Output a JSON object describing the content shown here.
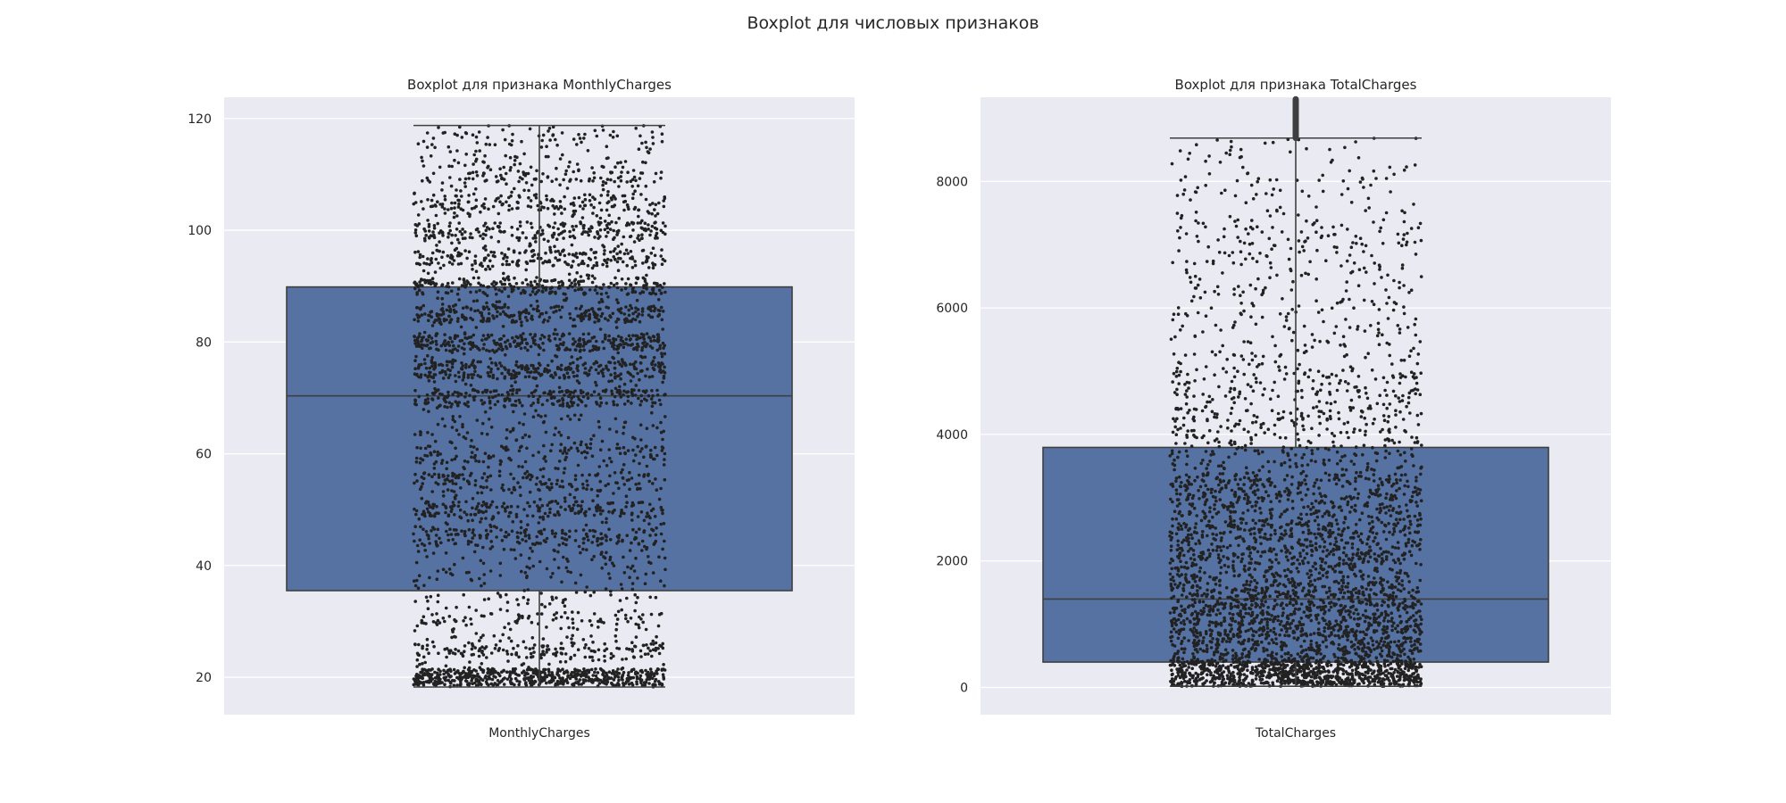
{
  "figure": {
    "suptitle": "Boxplot для числовых признаков"
  },
  "chart_data": [
    {
      "type": "box",
      "title": "Boxplot для признака MonthlyCharges",
      "xlabel": "MonthlyCharges",
      "ylabel": "",
      "ylim": [
        13.3,
        123.8
      ],
      "yticks": [
        20,
        40,
        60,
        80,
        100,
        120
      ],
      "grid": true,
      "box_color": "#5572a3",
      "point_color": "#222222",
      "box": {
        "whisker_low": 18.25,
        "q1": 35.5,
        "median": 70.35,
        "q3": 89.85,
        "whisker_high": 118.75,
        "fliers": []
      },
      "strip_points": 7043,
      "strip_bands": [
        20,
        25,
        30,
        45,
        50,
        55,
        60,
        70,
        75,
        80,
        85,
        90,
        95,
        100,
        105,
        110
      ]
    },
    {
      "type": "box",
      "title": "Boxplot для признака TotalCharges",
      "xlabel": "TotalCharges",
      "ylabel": "",
      "ylim": [
        -430,
        9330
      ],
      "yticks": [
        0,
        2000,
        4000,
        6000,
        8000
      ],
      "grid": true,
      "box_color": "#5572a3",
      "point_color": "#222222",
      "box": {
        "whisker_low": 18.8,
        "q1": 401.45,
        "median": 1397.5,
        "q3": 3794.7,
        "whisker_high": 8684.8,
        "fliers": [
          8700,
          8800,
          8900,
          9000,
          9100,
          9200
        ]
      },
      "strip_points": 7043,
      "strip_bands": []
    }
  ]
}
